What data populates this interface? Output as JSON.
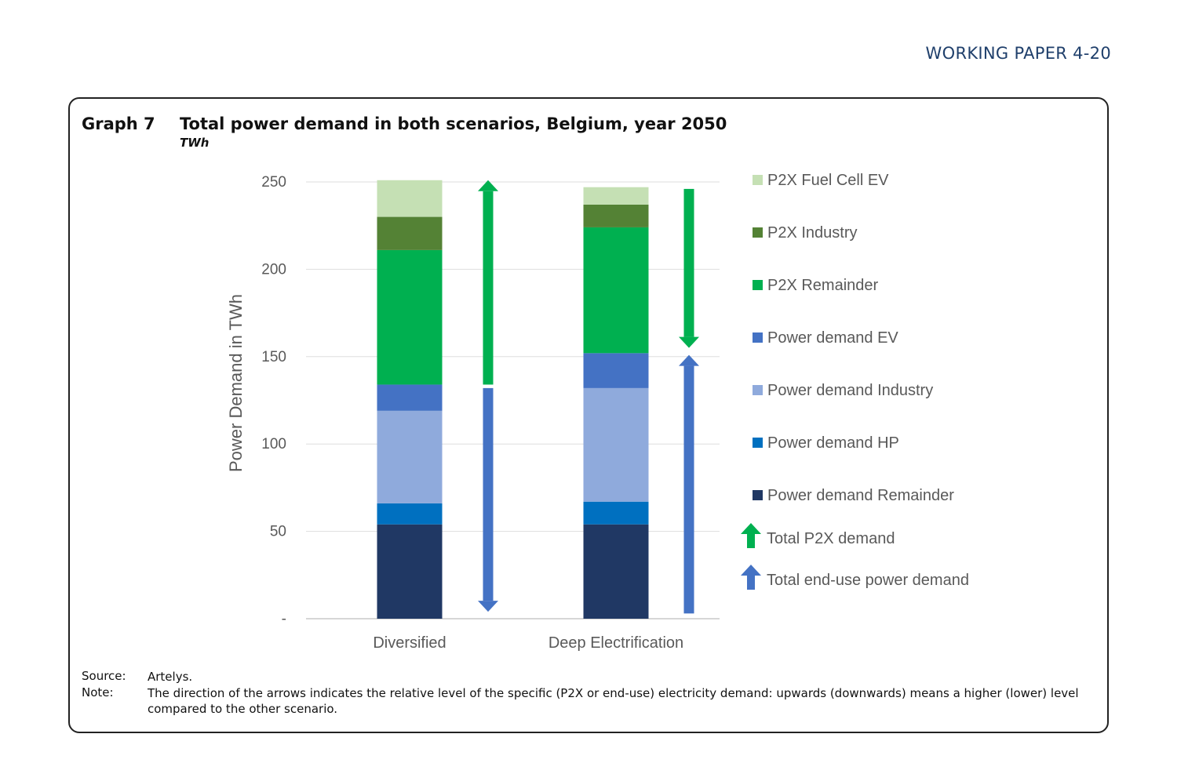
{
  "page_header": "WORKING PAPER 4-20",
  "graph": {
    "number": "Graph 7",
    "title": "Total power demand in both scenarios, Belgium, year 2050",
    "unit": "TWh"
  },
  "chart_data": {
    "type": "bar",
    "stacked": true,
    "categories": [
      "Diversified",
      "Deep Electrification"
    ],
    "ylabel": "Power Demand in TWh",
    "xlabel": "",
    "ylim": [
      0,
      250
    ],
    "yticks": [
      0,
      50,
      100,
      150,
      200,
      250
    ],
    "ytick_labels": [
      "-",
      "50",
      "100",
      "150",
      "200",
      "250"
    ],
    "grid": true,
    "series": [
      {
        "name": "Power demand Remainder",
        "color": "#203864",
        "values": [
          54,
          54
        ]
      },
      {
        "name": "Power demand HP",
        "color": "#0070c0",
        "values": [
          12,
          13
        ]
      },
      {
        "name": "Power demand Industry",
        "color": "#8faadc",
        "values": [
          53,
          65
        ]
      },
      {
        "name": "Power demand EV",
        "color": "#4472c4",
        "values": [
          15,
          20
        ]
      },
      {
        "name": "P2X Remainder",
        "color": "#00b050",
        "values": [
          77,
          72
        ]
      },
      {
        "name": "P2X Industry",
        "color": "#548235",
        "values": [
          19,
          13
        ]
      },
      {
        "name": "P2X Fuel Cell EV",
        "color": "#c5e0b4",
        "values": [
          21,
          10
        ]
      }
    ],
    "legend_order": [
      "P2X Fuel Cell EV",
      "P2X Industry",
      "P2X Remainder",
      "Power demand EV",
      "Power demand Industry",
      "Power demand HP",
      "Power demand Remainder"
    ],
    "arrows": [
      {
        "category": "Diversified",
        "name": "Total P2X demand",
        "color": "#00b050",
        "direction": "up",
        "from": 134,
        "to": 251
      },
      {
        "category": "Diversified",
        "name": "Total end-use power demand",
        "color": "#4472c4",
        "direction": "down",
        "from": 132,
        "to": 4
      },
      {
        "category": "Deep Electrification",
        "name": "Total P2X demand",
        "color": "#00b050",
        "direction": "down",
        "from": 246,
        "to": 155
      },
      {
        "category": "Deep Electrification",
        "name": "Total end-use power demand",
        "color": "#4472c4",
        "direction": "up",
        "from": 3,
        "to": 151
      }
    ],
    "arrow_legend": [
      {
        "name": "Total P2X demand",
        "color": "#00b050"
      },
      {
        "name": "Total end-use power demand",
        "color": "#4472c4"
      }
    ]
  },
  "footnotes": {
    "source_label": "Source:",
    "source_text": "Artelys.",
    "note_label": "Note:",
    "note_text": "The direction of the arrows indicates the relative level of the specific (P2X or end-use) electricity demand: upwards (downwards) means a higher (lower) level compared to the other scenario."
  }
}
